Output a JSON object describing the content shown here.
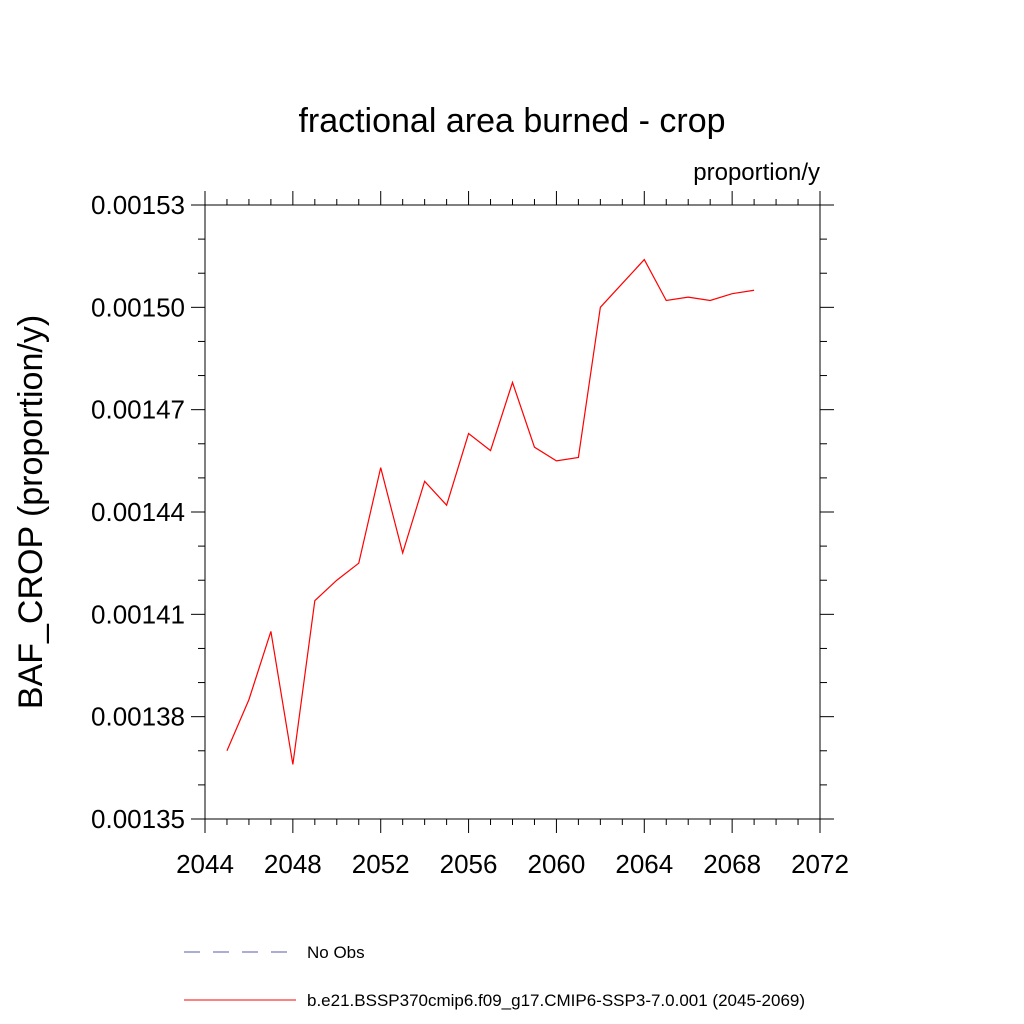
{
  "chart_data": {
    "type": "line",
    "title": "fractional area burned - crop",
    "units": "proportion/y",
    "ylabel": "BAF_CROP  (proportion/y)",
    "xlabel": "",
    "xlim": [
      2044,
      2072
    ],
    "ylim": [
      0.00135,
      0.00153
    ],
    "x_major_ticks": [
      2044,
      2048,
      2052,
      2056,
      2060,
      2064,
      2068,
      2072
    ],
    "x_tick_labels": [
      "2044",
      "2048",
      "2052",
      "2056",
      "2060",
      "2064",
      "2068",
      "2072"
    ],
    "y_major_ticks": [
      0.00135,
      0.00138,
      0.00141,
      0.00144,
      0.00147,
      0.0015,
      0.00153
    ],
    "y_tick_labels": [
      "0.00135",
      "0.00138",
      "0.00141",
      "0.00144",
      "0.00147",
      "0.00150",
      "0.00153"
    ],
    "x_minor_step": 1,
    "y_minor_step": 1e-05,
    "series": [
      {
        "name": "b.e21.BSSP370cmip6.f09_g17.CMIP6-SSP3-7.0.001 (2045-2069)",
        "color": "#ff0000",
        "style": "solid",
        "x": [
          2045,
          2046,
          2047,
          2048,
          2049,
          2050,
          2051,
          2052,
          2053,
          2054,
          2055,
          2056,
          2057,
          2058,
          2059,
          2060,
          2061,
          2062,
          2063,
          2064,
          2065,
          2066,
          2067,
          2068,
          2069
        ],
        "values": [
          0.00137,
          0.001385,
          0.001405,
          0.001366,
          0.001414,
          0.00142,
          0.001425,
          0.001453,
          0.001428,
          0.001449,
          0.001442,
          0.001463,
          0.001458,
          0.001478,
          0.001459,
          0.001455,
          0.001456,
          0.0015,
          0.001507,
          0.001514,
          0.001502,
          0.001503,
          0.001502,
          0.001504,
          0.001505
        ]
      }
    ],
    "legend": [
      {
        "label": "No Obs",
        "color": "#5a5aa8",
        "style": "dashed"
      },
      {
        "label": "b.e21.BSSP370cmip6.f09_g17.CMIP6-SSP3-7.0.001 (2045-2069)",
        "color": "#ff0000",
        "style": "solid"
      }
    ],
    "legend_position": "bottom"
  }
}
